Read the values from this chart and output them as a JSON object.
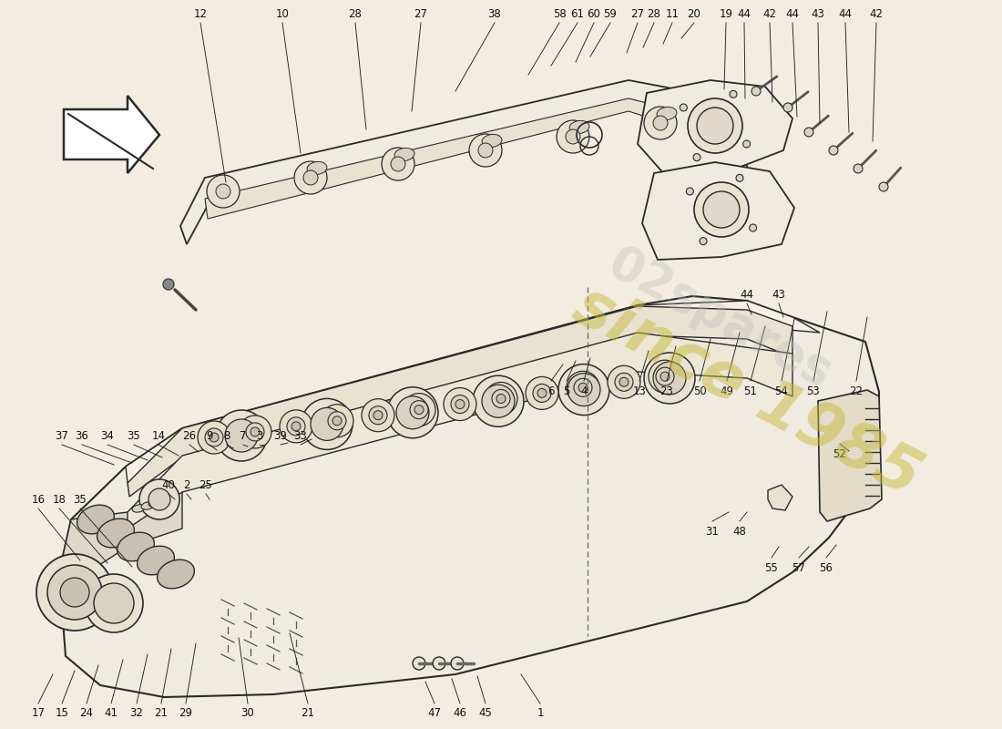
{
  "bg_color": "#f2ede0",
  "fig_width": 11.0,
  "fig_height": 8.0,
  "dpi": 100,
  "lc": "#2a2a2a",
  "fc_light": "#f0ebe0",
  "fc_mid": "#e8e2d0",
  "fc_dark": "#d8d2c0",
  "watermark_color": "#c8b840",
  "part_label_fontsize": 8.5,
  "part_label_color": "#111111",
  "top_labels": [
    [
      220,
      22,
      "12"
    ],
    [
      310,
      22,
      "10"
    ],
    [
      390,
      22,
      "28"
    ],
    [
      462,
      22,
      "27"
    ],
    [
      543,
      22,
      "38"
    ],
    [
      614,
      22,
      "58"
    ],
    [
      634,
      22,
      "61"
    ],
    [
      652,
      22,
      "60"
    ],
    [
      670,
      22,
      "59"
    ],
    [
      700,
      22,
      "27"
    ],
    [
      718,
      22,
      "28"
    ],
    [
      738,
      22,
      "11"
    ],
    [
      762,
      22,
      "20"
    ],
    [
      797,
      22,
      "19"
    ],
    [
      817,
      22,
      "44"
    ],
    [
      845,
      22,
      "42"
    ],
    [
      870,
      22,
      "44"
    ],
    [
      898,
      22,
      "43"
    ],
    [
      928,
      22,
      "44"
    ],
    [
      962,
      22,
      "42"
    ]
  ],
  "mid_right_labels": [
    [
      605,
      418,
      "6"
    ],
    [
      622,
      418,
      "5"
    ],
    [
      641,
      418,
      "4"
    ],
    [
      702,
      418,
      "13"
    ],
    [
      732,
      418,
      "23"
    ],
    [
      768,
      418,
      "50"
    ],
    [
      798,
      418,
      "49"
    ],
    [
      824,
      418,
      "51"
    ],
    [
      858,
      418,
      "54"
    ],
    [
      893,
      418,
      "53"
    ],
    [
      940,
      418,
      "22"
    ]
  ],
  "left_mid_labels": [
    [
      68,
      488,
      "37"
    ],
    [
      90,
      488,
      "36"
    ],
    [
      118,
      488,
      "34"
    ],
    [
      147,
      488,
      "35"
    ],
    [
      174,
      488,
      "14"
    ],
    [
      208,
      488,
      "26"
    ],
    [
      230,
      488,
      "9"
    ],
    [
      249,
      488,
      "8"
    ],
    [
      267,
      488,
      "7"
    ],
    [
      285,
      488,
      "3"
    ],
    [
      308,
      488,
      "39"
    ],
    [
      330,
      488,
      "33"
    ]
  ],
  "left_lower_labels": [
    [
      42,
      558,
      "16"
    ],
    [
      65,
      558,
      "18"
    ],
    [
      88,
      558,
      "35"
    ]
  ],
  "mid_left_labels": [
    [
      185,
      542,
      "40"
    ],
    [
      205,
      542,
      "2"
    ],
    [
      226,
      542,
      "25"
    ]
  ],
  "right_labels": [
    [
      782,
      572,
      "31"
    ],
    [
      812,
      572,
      "48"
    ],
    [
      847,
      612,
      "55"
    ],
    [
      877,
      612,
      "57"
    ],
    [
      907,
      612,
      "56"
    ],
    [
      922,
      487,
      "52"
    ]
  ],
  "upper_right_labels": [
    [
      820,
      333,
      "44"
    ],
    [
      855,
      333,
      "43"
    ]
  ],
  "bottom_labels": [
    [
      42,
      772,
      "17"
    ],
    [
      68,
      772,
      "15"
    ],
    [
      95,
      772,
      "24"
    ],
    [
      122,
      772,
      "41"
    ],
    [
      150,
      772,
      "32"
    ],
    [
      177,
      772,
      "21"
    ],
    [
      204,
      772,
      "29"
    ],
    [
      272,
      772,
      "30"
    ],
    [
      338,
      772,
      "21"
    ],
    [
      477,
      772,
      "47"
    ],
    [
      505,
      772,
      "46"
    ],
    [
      533,
      772,
      "45"
    ],
    [
      593,
      772,
      "1"
    ]
  ]
}
